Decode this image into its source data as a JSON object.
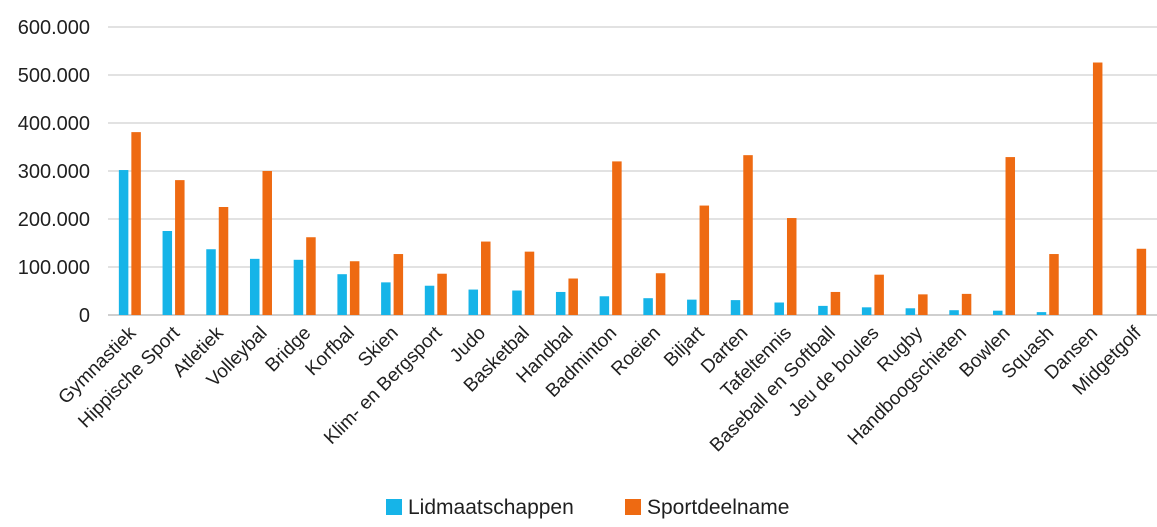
{
  "chart_data": {
    "type": "bar",
    "title": "",
    "xlabel": "",
    "ylabel": "",
    "ylim": [
      0,
      600000
    ],
    "y_ticks": [
      0,
      100000,
      200000,
      300000,
      400000,
      500000,
      600000
    ],
    "y_tick_labels": [
      "0",
      "100.000",
      "200.000",
      "300.000",
      "400.000",
      "500.000",
      "600.000"
    ],
    "grid": true,
    "legend_position": "bottom",
    "categories": [
      "Gymnastiek",
      "Hippische Sport",
      "Atletiek",
      "Volleybal",
      "Bridge",
      "Korfbal",
      "Skien",
      "Klim- en Bergsport",
      "Judo",
      "Basketbal",
      "Handbal",
      "Badminton",
      "Roeien",
      "Biljart",
      "Darten",
      "Tafeltennis",
      "Baseball en Softball",
      "Jeu de boules",
      "Rugby",
      "Handboogschieten",
      "Bowlen",
      "Squash",
      "Dansen",
      "Midgetgolf"
    ],
    "series": [
      {
        "name": "Lidmaatschappen",
        "color": "#16b4e8",
        "values": [
          302000,
          175000,
          137000,
          117000,
          115000,
          85000,
          68000,
          61000,
          53000,
          51000,
          48000,
          39000,
          35000,
          32000,
          31000,
          26000,
          19000,
          16000,
          14000,
          10000,
          9000,
          6000,
          0,
          0
        ]
      },
      {
        "name": "Sportdeelname",
        "color": "#ee6a12",
        "values": [
          381000,
          281000,
          225000,
          300000,
          162000,
          112000,
          127000,
          86000,
          153000,
          132000,
          76000,
          320000,
          87000,
          228000,
          333000,
          202000,
          48000,
          84000,
          43000,
          44000,
          329000,
          127000,
          526000,
          138000
        ]
      }
    ]
  }
}
